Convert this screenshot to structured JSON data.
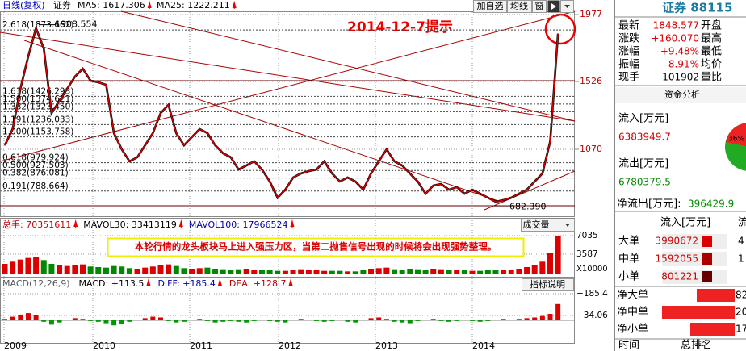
{
  "toolbar": {
    "period": "日线(复权)",
    "name": "证券",
    "ma5": "MA5: 1617.306",
    "ma25": "MA25: 1222.211",
    "buttons": [
      "加自选",
      "均线",
      "窗"
    ]
  },
  "price_chart": {
    "ylim": [
      619,
      1999
    ],
    "yticks": [
      1977,
      1526,
      1070
    ],
    "closes": [
      1097,
      1206,
      1477,
      1695,
      1885,
      1749,
      1314,
      1396,
      1477,
      1559,
      1613,
      1532,
      1521,
      1504,
      1179,
      1070,
      989,
      1016,
      1097,
      1179,
      1314,
      1369,
      1179,
      1097,
      1152,
      1206,
      1179,
      1097,
      1043,
      1016,
      934,
      961,
      989,
      934,
      853,
      744,
      798,
      880,
      907,
      923,
      934,
      989,
      907,
      853,
      880,
      853,
      798,
      907,
      989,
      1070,
      989,
      961,
      907,
      853,
      771,
      826,
      836,
      798,
      815,
      771,
      798,
      771,
      744,
      717,
      728,
      744,
      771,
      798,
      853,
      907,
      1124,
      1849
    ],
    "fib_levels": [
      {
        "value": 1873.662,
        "label": "2.618(1873.662)"
      },
      {
        "value": 1426.293,
        "label": "1.618(1426.293)"
      },
      {
        "value": 1374.621,
        "label": "1.500(1374.621)"
      },
      {
        "value": 1323.45,
        "label": "1.382(1323.450)"
      },
      {
        "value": 1236.033,
        "label": "1.191(1236.033)"
      },
      {
        "value": 1153.758,
        "label": "1.000(1153.758)"
      },
      {
        "value": 979.924,
        "label": "0.618(979.924)"
      },
      {
        "value": 927.503,
        "label": "0.500(927.503)"
      },
      {
        "value": 876.081,
        "label": "0.382(876.081)"
      },
      {
        "value": 788.664,
        "label": "0.191(788.664)"
      }
    ],
    "high": {
      "value": 1908.554,
      "label": "1908.554"
    },
    "low": {
      "value": 682.39,
      "label": "682.390"
    },
    "alert": "2014-12-7提示"
  },
  "volume_chart": {
    "header": [
      "总手: 70351611",
      "MAVOL30: 33413119",
      "MAVOL100: 17966524"
    ],
    "selector": "成交量",
    "note": "本轮行情的龙头板块马上进入强压力区，当第二抛售信号出现的时候将会出现强势整理。",
    "ylim": [
      0,
      7935
    ],
    "yticks": [
      7035,
      3587
    ],
    "unit": "X10000",
    "values": [
      1800,
      2200,
      2600,
      2900,
      3100,
      2500,
      1800,
      1500,
      1400,
      1600,
      1700,
      1300,
      1200,
      1100,
      1400,
      1300,
      1000,
      900,
      1100,
      1300,
      1500,
      1700,
      1400,
      1000,
      900,
      1000,
      1100,
      900,
      800,
      700,
      800,
      900,
      700,
      600,
      600,
      500,
      500,
      700,
      800,
      700,
      600,
      500,
      500,
      500,
      400,
      400,
      600,
      900,
      1000,
      1100,
      800,
      700,
      900,
      800,
      700,
      900,
      800,
      700,
      600,
      600,
      500,
      500,
      600,
      600,
      600,
      700,
      900,
      1200,
      1600,
      2200,
      3800,
      7035
    ]
  },
  "macd_chart": {
    "header": [
      "MACD(12,26,9)",
      "MACD: +113.5",
      "DIFF: +185.4",
      "DEA: +128.7"
    ],
    "button": "指标说明",
    "ylim": [
      -157,
      219
    ],
    "yticks": [
      {
        "value": 185.4,
        "label": "+185.4"
      },
      {
        "value": 34.06,
        "label": "+34.06"
      }
    ],
    "histogram": [
      10,
      25,
      40,
      50,
      35,
      -10,
      -30,
      -15,
      5,
      15,
      10,
      -5,
      -10,
      -20,
      -35,
      -25,
      -10,
      5,
      15,
      25,
      20,
      -5,
      -15,
      -10,
      5,
      10,
      -5,
      -15,
      -10,
      -5,
      -10,
      -15,
      -5,
      5,
      -5,
      -10,
      -15,
      5,
      10,
      5,
      -5,
      -10,
      -5,
      5,
      -10,
      -15,
      5,
      15,
      20,
      10,
      -10,
      -15,
      -20,
      -5,
      5,
      10,
      -5,
      -10,
      -5,
      5,
      -5,
      -10,
      -5,
      5,
      10,
      5,
      10,
      15,
      20,
      30,
      45,
      113.5
    ]
  },
  "x_axis": {
    "labels": [
      "2009",
      "2010",
      "2011",
      "2012",
      "2013",
      "2014"
    ]
  },
  "quote_panel": {
    "title": "证券 88115",
    "rows": [
      [
        "最新",
        "1848.577",
        "开盘"
      ],
      [
        "涨跌",
        "+160.070",
        "最高"
      ],
      [
        "涨幅",
        "+9.48%",
        "最低"
      ],
      [
        "振幅",
        "8.91%",
        "均价"
      ],
      [
        "现手",
        "101902",
        "量比"
      ]
    ],
    "fund_title": "资金分析",
    "inflow_label": "流入[万元]",
    "inflow": "6383949.7",
    "outflow_label": "流出[万元]",
    "outflow": "6780379.5",
    "net_label": "净流出[万元]:",
    "net": "396429.9",
    "pie_label": "36%",
    "table_header": [
      "流入[万元]",
      "流"
    ],
    "table": [
      [
        "大单",
        "3990672",
        "4"
      ],
      [
        "中单",
        "1592055",
        "1"
      ],
      [
        "小单",
        "801221"
      ]
    ],
    "net_rows": [
      [
        "净大单",
        "82"
      ],
      [
        "净中单",
        "20"
      ],
      [
        "净小单",
        "17"
      ]
    ],
    "footer": [
      "时间",
      "总排名"
    ]
  }
}
